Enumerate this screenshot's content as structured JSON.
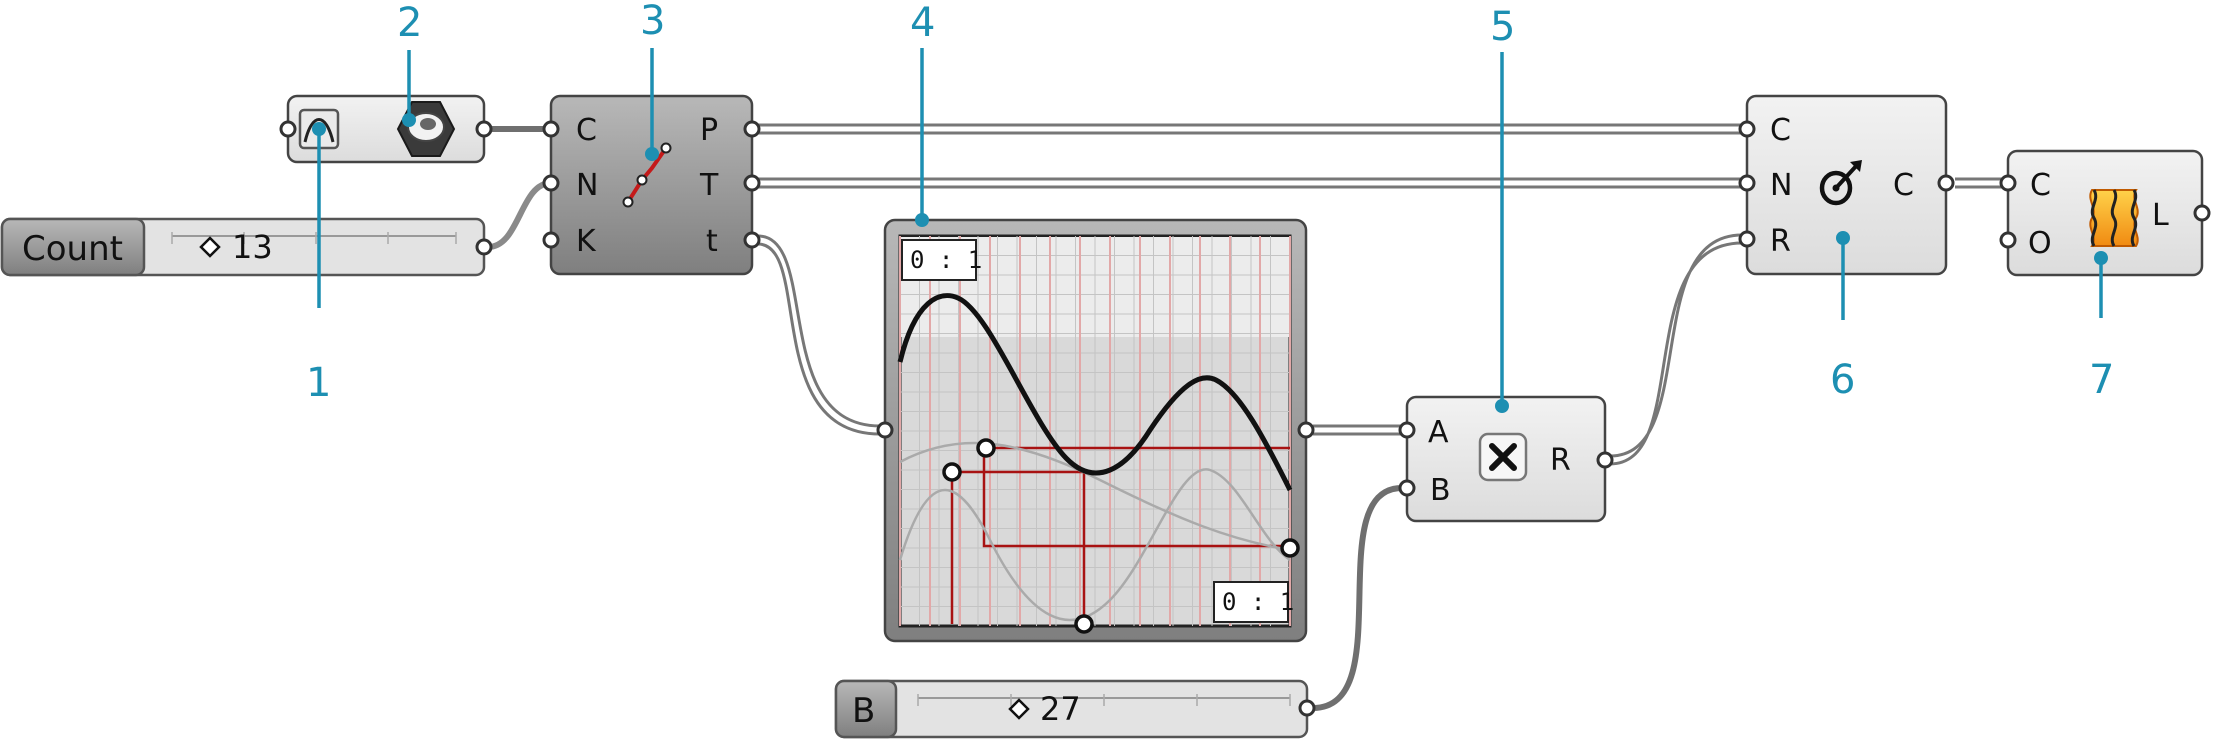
{
  "callouts": [
    "1",
    "2",
    "3",
    "4",
    "5",
    "6",
    "7"
  ],
  "count_slider": {
    "label": "Count",
    "value": "13"
  },
  "b_slider": {
    "label": "B",
    "value": "27"
  },
  "divide_curve": {
    "inputs": [
      "C",
      "N",
      "K"
    ],
    "outputs": [
      "P",
      "T",
      "t"
    ]
  },
  "graph_mapper": {
    "domain_x": "0 : 1",
    "domain_y": "0 : 1"
  },
  "multiplication": {
    "inputs": [
      "A",
      "B"
    ],
    "outputs": [
      "R"
    ]
  },
  "circle_cnr": {
    "inputs": [
      "C",
      "N",
      "R"
    ],
    "outputs": [
      "C"
    ]
  },
  "loft": {
    "inputs": [
      "C",
      "O"
    ],
    "outputs": [
      "L"
    ]
  },
  "colors": {
    "callout": "#1d8fb2",
    "component_face": "#e6e6e6",
    "component_dark": "#9a9a9a",
    "wire": "#7b7b7b",
    "graph_red": "#a81212",
    "icon_orange": "#f0a323"
  },
  "icons": [
    "curve-param-icon",
    "surface-container-icon",
    "divide-curve-icon",
    "multiply-icon",
    "circle-icon",
    "loft-icon"
  ]
}
